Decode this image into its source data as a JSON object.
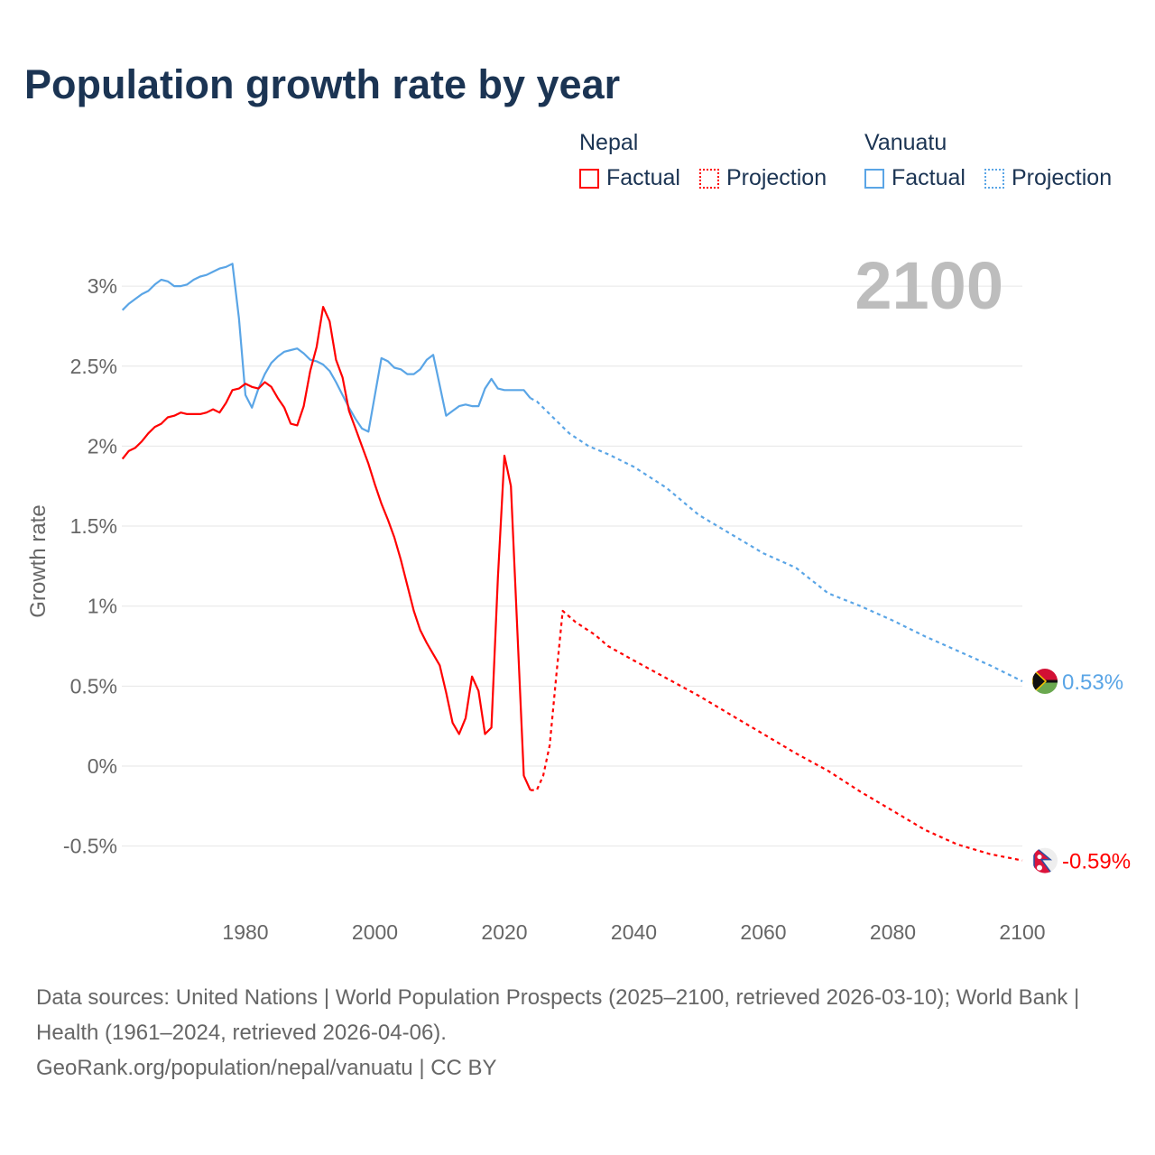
{
  "title": "Population growth rate by year",
  "legend": {
    "groups": [
      {
        "name": "Nepal",
        "factual": "Factual",
        "projection": "Projection",
        "color": "#ff0000"
      },
      {
        "name": "Vanuatu",
        "factual": "Factual",
        "projection": "Projection",
        "color": "#5aa5e6"
      }
    ]
  },
  "year_label": "2100",
  "footer": {
    "sources": "Data sources: United Nations | World Population Prospects (2025–2100, retrieved 2026-03-10); World Bank | Health (1961–2024, retrieved 2026-04-06).",
    "credit": "GeoRank.org/population/nepal/vanuatu | CC BY"
  },
  "chart_data": {
    "type": "line",
    "title": "Population growth rate by year",
    "xlabel": "",
    "ylabel": "Growth rate",
    "xlim": [
      1961,
      2100
    ],
    "ylim": [
      -0.75,
      3.3
    ],
    "x_ticks": [
      "1980",
      "2000",
      "2020",
      "2040",
      "2060",
      "2080",
      "2100"
    ],
    "x_tick_values": [
      1980,
      2000,
      2020,
      2040,
      2060,
      2080,
      2100
    ],
    "y_ticks": [
      "3%",
      "2.5%",
      "2%",
      "1.5%",
      "1%",
      "0.5%",
      "0%",
      "-0.5%"
    ],
    "y_tick_values": [
      3,
      2.5,
      2,
      1.5,
      1,
      0.5,
      0,
      -0.5
    ],
    "grid": true,
    "legend_position": "top-right",
    "series": [
      {
        "name": "Vanuatu Factual",
        "color": "#5aa5e6",
        "dashed": false,
        "points": [
          [
            1961,
            2.85
          ],
          [
            1962,
            2.89
          ],
          [
            1963,
            2.92
          ],
          [
            1964,
            2.95
          ],
          [
            1965,
            2.97
          ],
          [
            1966,
            3.01
          ],
          [
            1967,
            3.04
          ],
          [
            1968,
            3.03
          ],
          [
            1969,
            3.0
          ],
          [
            1970,
            3.0
          ],
          [
            1971,
            3.01
          ],
          [
            1972,
            3.04
          ],
          [
            1973,
            3.06
          ],
          [
            1974,
            3.07
          ],
          [
            1975,
            3.09
          ],
          [
            1976,
            3.11
          ],
          [
            1977,
            3.12
          ],
          [
            1978,
            3.14
          ],
          [
            1979,
            2.8
          ],
          [
            1980,
            2.32
          ],
          [
            1981,
            2.24
          ],
          [
            1982,
            2.36
          ],
          [
            1983,
            2.45
          ],
          [
            1984,
            2.52
          ],
          [
            1985,
            2.56
          ],
          [
            1986,
            2.59
          ],
          [
            1987,
            2.6
          ],
          [
            1988,
            2.61
          ],
          [
            1989,
            2.58
          ],
          [
            1990,
            2.54
          ],
          [
            1991,
            2.53
          ],
          [
            1992,
            2.51
          ],
          [
            1993,
            2.47
          ],
          [
            1994,
            2.4
          ],
          [
            1995,
            2.32
          ],
          [
            1996,
            2.24
          ],
          [
            1997,
            2.17
          ],
          [
            1998,
            2.11
          ],
          [
            1999,
            2.09
          ],
          [
            2000,
            2.32
          ],
          [
            2001,
            2.55
          ],
          [
            2002,
            2.53
          ],
          [
            2003,
            2.49
          ],
          [
            2004,
            2.48
          ],
          [
            2005,
            2.45
          ],
          [
            2006,
            2.45
          ],
          [
            2007,
            2.48
          ],
          [
            2008,
            2.54
          ],
          [
            2009,
            2.57
          ],
          [
            2010,
            2.38
          ],
          [
            2011,
            2.19
          ],
          [
            2012,
            2.22
          ],
          [
            2013,
            2.25
          ],
          [
            2014,
            2.26
          ],
          [
            2015,
            2.25
          ],
          [
            2016,
            2.25
          ],
          [
            2017,
            2.36
          ],
          [
            2018,
            2.42
          ],
          [
            2019,
            2.36
          ],
          [
            2020,
            2.35
          ],
          [
            2021,
            2.35
          ],
          [
            2022,
            2.35
          ],
          [
            2023,
            2.35
          ],
          [
            2024,
            2.3
          ]
        ]
      },
      {
        "name": "Vanuatu Projection",
        "color": "#5aa5e6",
        "dashed": true,
        "points": [
          [
            2024,
            2.3
          ],
          [
            2025,
            2.28
          ],
          [
            2027,
            2.2
          ],
          [
            2030,
            2.08
          ],
          [
            2033,
            2.0
          ],
          [
            2036,
            1.95
          ],
          [
            2040,
            1.87
          ],
          [
            2045,
            1.74
          ],
          [
            2050,
            1.57
          ],
          [
            2055,
            1.45
          ],
          [
            2060,
            1.33
          ],
          [
            2065,
            1.24
          ],
          [
            2070,
            1.08
          ],
          [
            2075,
            1.0
          ],
          [
            2080,
            0.91
          ],
          [
            2085,
            0.81
          ],
          [
            2090,
            0.72
          ],
          [
            2095,
            0.63
          ],
          [
            2100,
            0.53
          ]
        ]
      },
      {
        "name": "Nepal Factual",
        "color": "#ff0000",
        "dashed": false,
        "points": [
          [
            1961,
            1.92
          ],
          [
            1962,
            1.97
          ],
          [
            1963,
            1.99
          ],
          [
            1964,
            2.03
          ],
          [
            1965,
            2.08
          ],
          [
            1966,
            2.12
          ],
          [
            1967,
            2.14
          ],
          [
            1968,
            2.18
          ],
          [
            1969,
            2.19
          ],
          [
            1970,
            2.21
          ],
          [
            1971,
            2.2
          ],
          [
            1972,
            2.2
          ],
          [
            1973,
            2.2
          ],
          [
            1974,
            2.21
          ],
          [
            1975,
            2.23
          ],
          [
            1976,
            2.21
          ],
          [
            1977,
            2.27
          ],
          [
            1978,
            2.35
          ],
          [
            1979,
            2.36
          ],
          [
            1980,
            2.39
          ],
          [
            1981,
            2.37
          ],
          [
            1982,
            2.36
          ],
          [
            1983,
            2.4
          ],
          [
            1984,
            2.37
          ],
          [
            1985,
            2.3
          ],
          [
            1986,
            2.24
          ],
          [
            1987,
            2.14
          ],
          [
            1988,
            2.13
          ],
          [
            1989,
            2.25
          ],
          [
            1990,
            2.47
          ],
          [
            1991,
            2.62
          ],
          [
            1992,
            2.87
          ],
          [
            1993,
            2.78
          ],
          [
            1994,
            2.54
          ],
          [
            1995,
            2.43
          ],
          [
            1996,
            2.22
          ],
          [
            1997,
            2.11
          ],
          [
            1998,
            2.0
          ],
          [
            1999,
            1.89
          ],
          [
            2000,
            1.76
          ],
          [
            2001,
            1.64
          ],
          [
            2002,
            1.54
          ],
          [
            2003,
            1.43
          ],
          [
            2004,
            1.29
          ],
          [
            2005,
            1.13
          ],
          [
            2006,
            0.97
          ],
          [
            2007,
            0.85
          ],
          [
            2008,
            0.77
          ],
          [
            2009,
            0.7
          ],
          [
            2010,
            0.63
          ],
          [
            2011,
            0.46
          ],
          [
            2012,
            0.27
          ],
          [
            2013,
            0.2
          ],
          [
            2014,
            0.3
          ],
          [
            2015,
            0.56
          ],
          [
            2016,
            0.47
          ],
          [
            2017,
            0.2
          ],
          [
            2018,
            0.24
          ],
          [
            2019,
            1.18
          ],
          [
            2020,
            1.94
          ],
          [
            2021,
            1.75
          ],
          [
            2022,
            0.84
          ],
          [
            2023,
            -0.06
          ],
          [
            2024,
            -0.15
          ]
        ]
      },
      {
        "name": "Nepal Projection",
        "color": "#ff0000",
        "dashed": true,
        "points": [
          [
            2024,
            -0.15
          ],
          [
            2025,
            -0.15
          ],
          [
            2026,
            -0.06
          ],
          [
            2027,
            0.13
          ],
          [
            2028,
            0.56
          ],
          [
            2029,
            0.97
          ],
          [
            2031,
            0.9
          ],
          [
            2034,
            0.82
          ],
          [
            2036,
            0.75
          ],
          [
            2040,
            0.66
          ],
          [
            2045,
            0.55
          ],
          [
            2050,
            0.44
          ],
          [
            2055,
            0.32
          ],
          [
            2060,
            0.2
          ],
          [
            2065,
            0.08
          ],
          [
            2070,
            -0.03
          ],
          [
            2075,
            -0.16
          ],
          [
            2080,
            -0.28
          ],
          [
            2085,
            -0.4
          ],
          [
            2090,
            -0.49
          ],
          [
            2095,
            -0.55
          ],
          [
            2100,
            -0.59
          ]
        ]
      }
    ],
    "end_labels": [
      {
        "name": "Vanuatu",
        "value": 0.53,
        "label": "0.53%",
        "color": "#5aa5e6"
      },
      {
        "name": "Nepal",
        "value": -0.59,
        "label": "-0.59%",
        "color": "#ff0000"
      }
    ]
  }
}
